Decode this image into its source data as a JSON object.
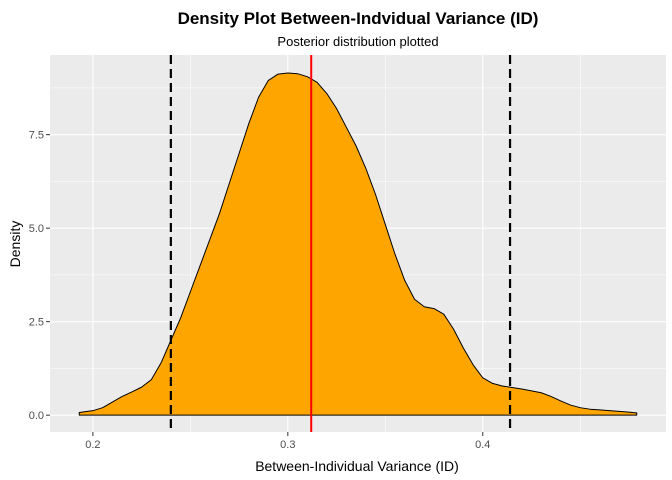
{
  "chart_data": {
    "type": "area",
    "title": "Density Plot Between-Indvidual Variance (ID)",
    "subtitle": "Posterior distribution plotted",
    "xlabel": "Between-Individual Variance (ID)",
    "ylabel": "Density",
    "xlim": [
      0.178,
      0.494
    ],
    "ylim": [
      -0.45,
      9.63
    ],
    "x_ticks": [
      0.2,
      0.3,
      0.4
    ],
    "x_tick_labels": [
      "0.2",
      "0.3",
      "0.4"
    ],
    "y_ticks": [
      0,
      2.5,
      5,
      7.5
    ],
    "y_tick_labels": [
      "0.0",
      "2.5",
      "5.0",
      "7.5"
    ],
    "grid": true,
    "legend": "none",
    "series": [
      {
        "fill": "#FFA500",
        "stroke": "#000000",
        "x": [
          0.193,
          0.2,
          0.205,
          0.21,
          0.215,
          0.22,
          0.225,
          0.23,
          0.235,
          0.24,
          0.245,
          0.25,
          0.255,
          0.26,
          0.265,
          0.27,
          0.275,
          0.28,
          0.285,
          0.29,
          0.295,
          0.3,
          0.305,
          0.31,
          0.315,
          0.32,
          0.325,
          0.33,
          0.335,
          0.34,
          0.345,
          0.35,
          0.355,
          0.36,
          0.365,
          0.37,
          0.375,
          0.38,
          0.385,
          0.39,
          0.395,
          0.4,
          0.405,
          0.41,
          0.415,
          0.42,
          0.425,
          0.43,
          0.435,
          0.44,
          0.445,
          0.45,
          0.455,
          0.46,
          0.465,
          0.47,
          0.475,
          0.479
        ],
        "y": [
          0.07,
          0.12,
          0.2,
          0.35,
          0.5,
          0.62,
          0.75,
          0.95,
          1.4,
          2.0,
          2.6,
          3.3,
          4.0,
          4.7,
          5.4,
          6.2,
          7.0,
          7.8,
          8.5,
          8.95,
          9.12,
          9.15,
          9.13,
          9.05,
          8.9,
          8.6,
          8.2,
          7.7,
          7.2,
          6.6,
          5.9,
          5.1,
          4.3,
          3.6,
          3.1,
          2.9,
          2.85,
          2.7,
          2.3,
          1.8,
          1.35,
          1.0,
          0.85,
          0.78,
          0.74,
          0.7,
          0.65,
          0.6,
          0.5,
          0.38,
          0.27,
          0.2,
          0.16,
          0.14,
          0.12,
          0.1,
          0.08,
          0.06
        ]
      }
    ],
    "vlines": [
      {
        "x": 0.24,
        "color": "#000000",
        "style": "dashed"
      },
      {
        "x": 0.312,
        "color": "#FF0000",
        "style": "solid"
      },
      {
        "x": 0.414,
        "color": "#000000",
        "style": "dashed"
      }
    ],
    "colors": {
      "panel_background": "#EBEBEB",
      "grid_major": "#FFFFFF",
      "density_fill": "#FFA500",
      "median_line": "#FF0000"
    }
  }
}
